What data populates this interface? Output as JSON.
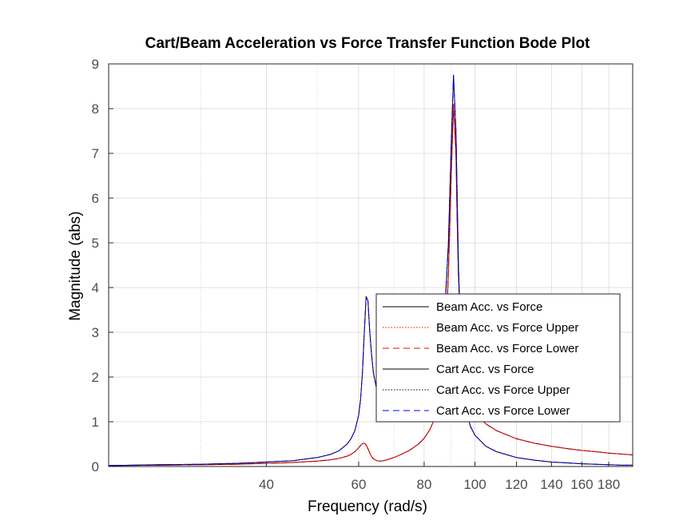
{
  "chart_data": {
    "type": "line",
    "title": "Cart/Beam Acceleration vs Force Transfer Function Bode Plot",
    "xlabel": "Frequency  (rad/s)",
    "ylabel": "Magnitude (abs)",
    "xscale": "log",
    "xlim": [
      20,
      200
    ],
    "ylim": [
      0,
      9
    ],
    "grid": true,
    "minor_grid": true,
    "legend_position": "inside-lower-right",
    "x_ticks": [
      40,
      60,
      80,
      100,
      120,
      140,
      160,
      180
    ],
    "x_tick_labels": [
      "40",
      "60",
      "80",
      "100",
      "120",
      "140",
      "160",
      "180"
    ],
    "y_ticks": [
      0,
      1,
      2,
      3,
      4,
      5,
      6,
      7,
      8,
      9
    ],
    "y_tick_labels": [
      "0",
      "1",
      "2",
      "3",
      "4",
      "5",
      "6",
      "7",
      "8",
      "9"
    ],
    "x": [
      20,
      25,
      30,
      35,
      40,
      45,
      50,
      53,
      55,
      57,
      58,
      59,
      60,
      60.5,
      61,
      61.5,
      62,
      62.5,
      63,
      63.5,
      64,
      65,
      66,
      67,
      68,
      70,
      72,
      75,
      78,
      80,
      82,
      84,
      85,
      86,
      87,
      88,
      89,
      90,
      91,
      92,
      92.5,
      93,
      94,
      95,
      96,
      97,
      98,
      100,
      105,
      110,
      120,
      130,
      140,
      150,
      160,
      170,
      180,
      190,
      200
    ],
    "series": [
      {
        "name": "Beam Acc. vs Force",
        "color": "#000000",
        "dash": "solid",
        "values": [
          0.02,
          0.03,
          0.04,
          0.05,
          0.07,
          0.09,
          0.12,
          0.15,
          0.18,
          0.23,
          0.27,
          0.33,
          0.42,
          0.47,
          0.51,
          0.52,
          0.48,
          0.4,
          0.3,
          0.22,
          0.17,
          0.13,
          0.12,
          0.13,
          0.15,
          0.2,
          0.26,
          0.36,
          0.5,
          0.63,
          0.82,
          1.1,
          1.35,
          1.7,
          2.2,
          3.0,
          4.3,
          6.3,
          8.1,
          7.0,
          5.5,
          4.3,
          3.0,
          2.3,
          1.9,
          1.6,
          1.4,
          1.2,
          0.95,
          0.8,
          0.62,
          0.52,
          0.45,
          0.4,
          0.36,
          0.33,
          0.3,
          0.28,
          0.26
        ]
      },
      {
        "name": "Beam Acc. vs Force Upper",
        "color": "#ff0000",
        "dash": "dotted",
        "values": [
          0.02,
          0.03,
          0.04,
          0.05,
          0.07,
          0.09,
          0.12,
          0.15,
          0.18,
          0.23,
          0.27,
          0.33,
          0.42,
          0.47,
          0.51,
          0.52,
          0.48,
          0.4,
          0.3,
          0.22,
          0.17,
          0.13,
          0.12,
          0.13,
          0.15,
          0.2,
          0.26,
          0.36,
          0.5,
          0.63,
          0.82,
          1.1,
          1.35,
          1.7,
          2.2,
          3.0,
          4.3,
          6.3,
          8.1,
          7.0,
          5.5,
          4.3,
          3.0,
          2.3,
          1.9,
          1.6,
          1.4,
          1.2,
          0.95,
          0.8,
          0.62,
          0.52,
          0.45,
          0.4,
          0.36,
          0.33,
          0.3,
          0.28,
          0.26
        ]
      },
      {
        "name": "Beam Acc. vs Force Lower",
        "color": "#ff0000",
        "dash": "dashed",
        "values": [
          0.02,
          0.03,
          0.04,
          0.05,
          0.07,
          0.09,
          0.12,
          0.15,
          0.18,
          0.23,
          0.27,
          0.33,
          0.42,
          0.47,
          0.51,
          0.52,
          0.48,
          0.4,
          0.3,
          0.22,
          0.17,
          0.13,
          0.12,
          0.13,
          0.15,
          0.2,
          0.26,
          0.36,
          0.5,
          0.63,
          0.82,
          1.1,
          1.35,
          1.7,
          2.2,
          3.0,
          4.3,
          6.3,
          8.1,
          7.0,
          5.5,
          4.3,
          3.0,
          2.3,
          1.9,
          1.6,
          1.4,
          1.2,
          0.95,
          0.8,
          0.62,
          0.52,
          0.45,
          0.4,
          0.36,
          0.33,
          0.3,
          0.28,
          0.26
        ]
      },
      {
        "name": "Cart Acc. vs Force",
        "color": "#000000",
        "dash": "solid",
        "values": [
          0.02,
          0.04,
          0.05,
          0.07,
          0.1,
          0.13,
          0.2,
          0.27,
          0.35,
          0.5,
          0.62,
          0.8,
          1.15,
          1.5,
          2.1,
          3.0,
          3.8,
          3.7,
          3.0,
          2.5,
          2.1,
          1.7,
          1.45,
          1.3,
          1.2,
          1.1,
          1.05,
          1.0,
          1.1,
          1.2,
          1.4,
          1.75,
          2.0,
          2.4,
          3.0,
          3.9,
          5.0,
          7.0,
          8.75,
          7.5,
          6.0,
          4.5,
          2.7,
          1.9,
          1.4,
          1.1,
          0.9,
          0.7,
          0.45,
          0.33,
          0.2,
          0.14,
          0.1,
          0.08,
          0.06,
          0.05,
          0.04,
          0.03,
          0.03
        ]
      },
      {
        "name": "Cart Acc. vs Force Upper",
        "color": "#000000",
        "dash": "dotted",
        "values": [
          0.02,
          0.04,
          0.05,
          0.07,
          0.1,
          0.13,
          0.2,
          0.27,
          0.35,
          0.5,
          0.62,
          0.8,
          1.15,
          1.5,
          2.1,
          3.0,
          3.8,
          3.7,
          3.0,
          2.5,
          2.1,
          1.7,
          1.45,
          1.3,
          1.2,
          1.1,
          1.05,
          1.0,
          1.1,
          1.2,
          1.4,
          1.75,
          2.0,
          2.4,
          3.0,
          3.9,
          5.0,
          7.0,
          8.75,
          7.5,
          6.0,
          4.5,
          2.7,
          1.9,
          1.4,
          1.1,
          0.9,
          0.7,
          0.45,
          0.33,
          0.2,
          0.14,
          0.1,
          0.08,
          0.06,
          0.05,
          0.04,
          0.03,
          0.03
        ]
      },
      {
        "name": "Cart Acc. vs Force Lower",
        "color": "#0000ff",
        "dash": "dashed",
        "values": [
          0.02,
          0.04,
          0.05,
          0.07,
          0.1,
          0.13,
          0.2,
          0.27,
          0.35,
          0.5,
          0.62,
          0.8,
          1.15,
          1.5,
          2.1,
          3.0,
          3.8,
          3.7,
          3.0,
          2.5,
          2.1,
          1.7,
          1.45,
          1.3,
          1.2,
          1.1,
          1.05,
          1.0,
          1.1,
          1.2,
          1.4,
          1.75,
          2.0,
          2.4,
          3.0,
          3.9,
          5.0,
          7.0,
          8.75,
          7.5,
          6.0,
          4.5,
          2.7,
          1.9,
          1.4,
          1.1,
          0.9,
          0.7,
          0.45,
          0.33,
          0.2,
          0.14,
          0.1,
          0.08,
          0.06,
          0.05,
          0.04,
          0.03,
          0.03
        ]
      }
    ]
  }
}
